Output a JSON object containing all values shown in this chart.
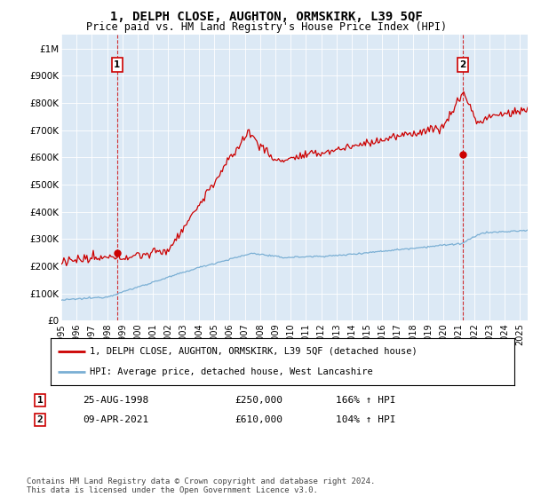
{
  "title": "1, DELPH CLOSE, AUGHTON, ORMSKIRK, L39 5QF",
  "subtitle": "Price paid vs. HM Land Registry's House Price Index (HPI)",
  "title_fontsize": 10,
  "subtitle_fontsize": 8.5,
  "xlim_left": 1995.0,
  "xlim_right": 2025.5,
  "ylim_bottom": 0,
  "ylim_top": 1050000,
  "yticks": [
    0,
    100000,
    200000,
    300000,
    400000,
    500000,
    600000,
    700000,
    800000,
    900000,
    1000000
  ],
  "ytick_labels": [
    "£0",
    "£100K",
    "£200K",
    "£300K",
    "£400K",
    "£500K",
    "£600K",
    "£700K",
    "£800K",
    "£900K",
    "£1M"
  ],
  "xticks": [
    1995,
    1996,
    1997,
    1998,
    1999,
    2000,
    2001,
    2002,
    2003,
    2004,
    2005,
    2006,
    2007,
    2008,
    2009,
    2010,
    2011,
    2012,
    2013,
    2014,
    2015,
    2016,
    2017,
    2018,
    2019,
    2020,
    2021,
    2022,
    2023,
    2024,
    2025
  ],
  "red_color": "#cc0000",
  "blue_color": "#7aafd4",
  "background_color": "#ffffff",
  "plot_bg_color": "#dce9f5",
  "grid_color": "#ffffff",
  "sale1_x": 1998.65,
  "sale1_y": 250000,
  "sale1_label": "1",
  "sale2_x": 2021.27,
  "sale2_y": 610000,
  "sale2_label": "2",
  "legend_label_red": "1, DELPH CLOSE, AUGHTON, ORMSKIRK, L39 5QF (detached house)",
  "legend_label_blue": "HPI: Average price, detached house, West Lancashire",
  "table_row1": [
    "1",
    "25-AUG-1998",
    "£250,000",
    "166% ↑ HPI"
  ],
  "table_row2": [
    "2",
    "09-APR-2021",
    "£610,000",
    "104% ↑ HPI"
  ],
  "footer": "Contains HM Land Registry data © Crown copyright and database right 2024.\nThis data is licensed under the Open Government Licence v3.0.",
  "marker_box_color": "#cc0000"
}
